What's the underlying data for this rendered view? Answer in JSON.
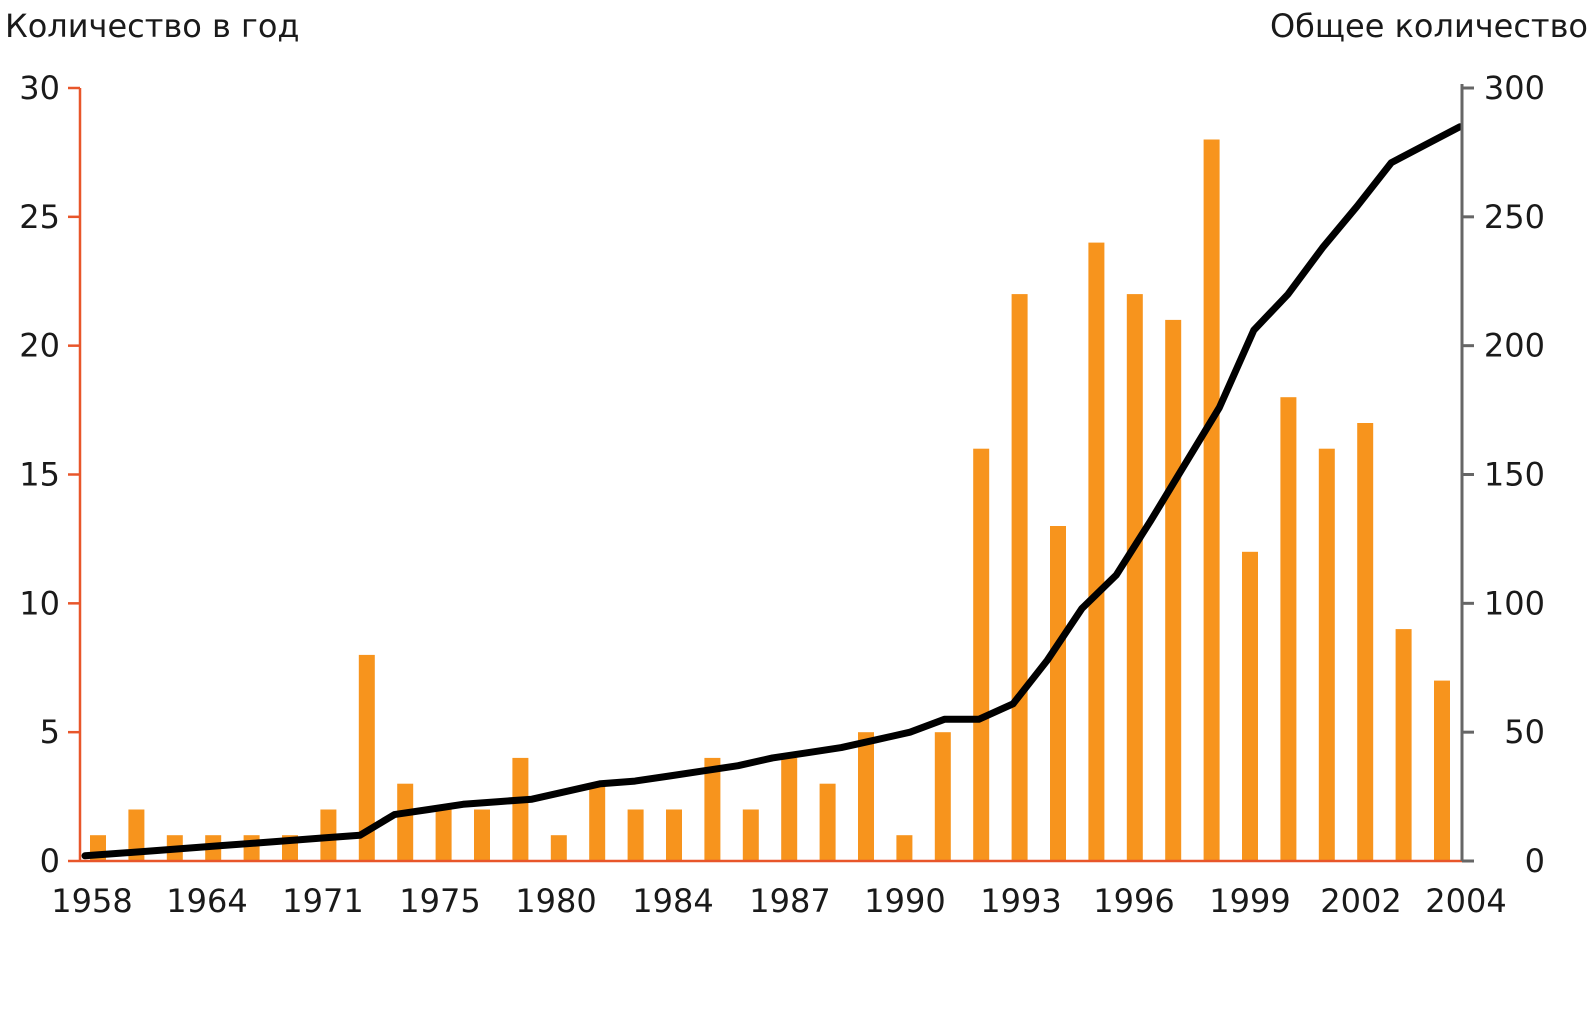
{
  "chart_data": {
    "type": "bar",
    "title": "",
    "ylabel_left": "Количество в год",
    "ylabel_right": "Общее количество",
    "ylim_left": [
      0,
      30
    ],
    "ylim_right": [
      0,
      300
    ],
    "yticks_left": [
      "0",
      "5",
      "10",
      "15",
      "20",
      "25",
      "30"
    ],
    "yticks_right": [
      "0",
      "50",
      "100",
      "150",
      "200",
      "250",
      "300"
    ],
    "x_tick_labels": [
      "1958",
      "1964",
      "1971",
      "1975",
      "1980",
      "1984",
      "1987",
      "1990",
      "1993",
      "1996",
      "1999",
      "2002",
      "2004"
    ],
    "grid": false,
    "series": [
      {
        "type": "bar",
        "axis": "left",
        "color": "#f7941d",
        "values": [
          1,
          2,
          1,
          1,
          1,
          1,
          2,
          8,
          3,
          2,
          2,
          4,
          1,
          3,
          2,
          2,
          4,
          2,
          4,
          3,
          5,
          1,
          5,
          16,
          22,
          13,
          24,
          22,
          21,
          28,
          12,
          18,
          16,
          17,
          9,
          7
        ]
      },
      {
        "type": "line",
        "axis": "right",
        "color": "#000000",
        "values": [
          2,
          3,
          4,
          5,
          6,
          7,
          8,
          9,
          10,
          18,
          20,
          22,
          23,
          24,
          27,
          30,
          31,
          33,
          35,
          37,
          40,
          42,
          44,
          47,
          50,
          55,
          55,
          61,
          78,
          98,
          111,
          132,
          154,
          176,
          206,
          220,
          238,
          254,
          271,
          278,
          285
        ]
      }
    ],
    "colors": {
      "left_axis": "#e8562a",
      "right_axis": "#666666"
    }
  }
}
